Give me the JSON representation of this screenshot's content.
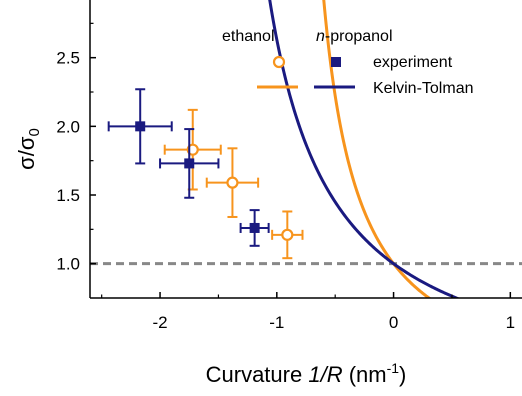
{
  "chart_data": {
    "type": "scatter",
    "xlabel": "Curvature 1/R (nm-1)",
    "xlabel_parts": {
      "prefix": "Curvature ",
      "italic": "1/R",
      "unit_open": " (nm",
      "unit_sup": "-1",
      "unit_close": ")"
    },
    "ylabel": "σ/σ0",
    "ylabel_parts": {
      "main": "σ/σ",
      "sub": "0"
    },
    "xlim": [
      -2.6,
      1.1
    ],
    "ylim": [
      0.75,
      2.92
    ],
    "xticks": [
      -2,
      -1,
      0,
      1
    ],
    "xtick_labels": [
      "-2",
      "-1",
      "0",
      "1"
    ],
    "yticks": [
      1.0,
      1.5,
      2.0,
      2.5
    ],
    "ytick_labels": [
      "1.0",
      "1.5",
      "2.0",
      "2.5"
    ],
    "legend": {
      "placement": "top-right",
      "column_headers": {
        "ethanol": "ethanol",
        "propanol_italic": "n",
        "propanol_rest": "-propanol"
      },
      "entries": [
        "experiment",
        "Kelvin-Tolman"
      ]
    },
    "reference_line": {
      "y": 1.0,
      "style": "dashed",
      "color": "#888888"
    },
    "series": [
      {
        "name": "ethanol experiment",
        "kind": "points",
        "marker": "open-circle",
        "color": "#f7941d",
        "points": [
          {
            "x": -1.72,
            "y": 1.83,
            "xerr": 0.24,
            "yerr": 0.29
          },
          {
            "x": -1.38,
            "y": 1.59,
            "xerr": 0.22,
            "yerr": 0.25
          },
          {
            "x": -0.91,
            "y": 1.21,
            "xerr": 0.13,
            "yerr": 0.17
          }
        ]
      },
      {
        "name": "n-propanol experiment",
        "kind": "points",
        "marker": "filled-square",
        "color": "#1a1a80",
        "points": [
          {
            "x": -2.17,
            "y": 2.0,
            "xerr": 0.27,
            "yerr": 0.27
          },
          {
            "x": -1.75,
            "y": 1.73,
            "xerr": 0.25,
            "yerr": 0.25
          },
          {
            "x": -1.19,
            "y": 1.26,
            "xerr": 0.12,
            "yerr": 0.13
          }
        ]
      },
      {
        "name": "ethanol Kelvin-Tolman",
        "kind": "curve",
        "color": "#f7941d",
        "delta": 0.55
      },
      {
        "name": "n-propanol Kelvin-Tolman",
        "kind": "curve",
        "color": "#1a1a80",
        "delta": 0.31
      }
    ]
  }
}
